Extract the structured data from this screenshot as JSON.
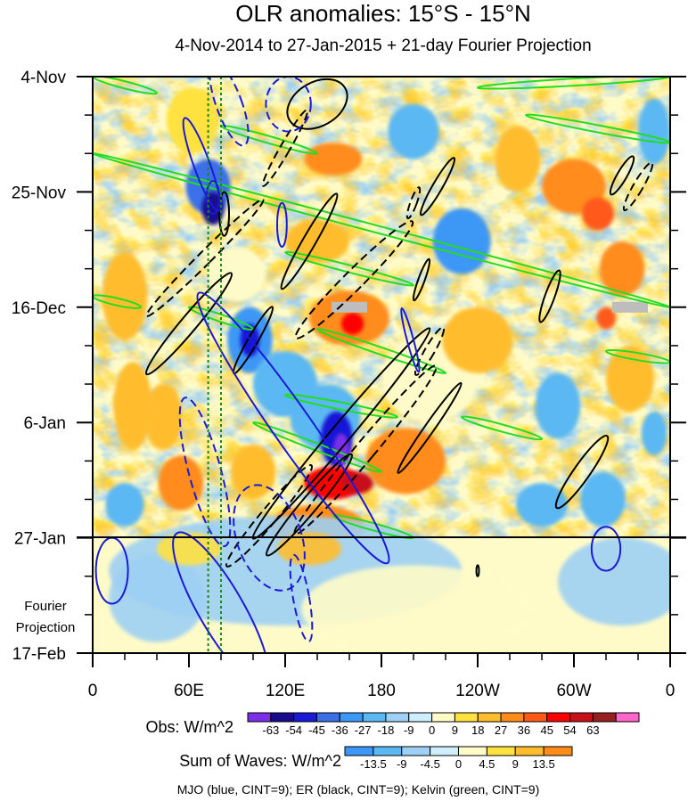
{
  "chart_data": {
    "type": "heatmap",
    "title": "OLR anomalies: 15°S - 15°N",
    "subtitle": "4-Nov-2014 to 27-Jan-2015 + 21-day Fourier Projection",
    "x_ticks": [
      "0",
      "60E",
      "120E",
      "180",
      "120W",
      "60W",
      "0"
    ],
    "x_range_deg": [
      0,
      360
    ],
    "y_ticks": [
      "4-Nov",
      "25-Nov",
      "16-Dec",
      "6-Jan",
      "27-Jan",
      "17-Feb"
    ],
    "y_range_days": [
      0,
      105
    ],
    "projection_start_day": 84,
    "projection_label_line1": "Fourier",
    "projection_label_line2": "Projection",
    "obs_colorbar": {
      "label": "Obs: W/m^2",
      "levels": [
        "-63",
        "-54",
        "-45",
        "-36",
        "-27",
        "-18",
        "-9",
        "0",
        "9",
        "18",
        "27",
        "36",
        "45",
        "54",
        "63"
      ],
      "colors": [
        "#7d2ee8",
        "#1a0a8c",
        "#1919d6",
        "#3b6fe8",
        "#3d97f5",
        "#5cb8f2",
        "#9ed0f4",
        "#cdeefa",
        "#fffbc8",
        "#ffe240",
        "#ffbd2e",
        "#ff8c1a",
        "#ff5a1a",
        "#ff0000",
        "#c8101a",
        "#962020",
        "#ff66cc"
      ]
    },
    "waves_colorbar": {
      "label": "Sum of Waves: W/m^2",
      "levels": [
        "-13.5",
        "-9",
        "-4.5",
        "0",
        "4.5",
        "9",
        "13.5"
      ],
      "colors": [
        "#3d97f5",
        "#5cb8f2",
        "#9ed0f4",
        "#cdeefa",
        "#fffbc8",
        "#ffe240",
        "#ffbd2e",
        "#ff8c1a"
      ]
    },
    "footnote": "MJO (blue, CINT=9); ER (black, CINT=9); Kelvin (green, CINT=9)",
    "green_reference_lines_deg": [
      72,
      80
    ],
    "anomaly_blobs": [
      {
        "lon": 62,
        "day": 8,
        "rx": 16,
        "ry": 6,
        "level": 9
      },
      {
        "lon": 72,
        "day": 20,
        "rx": 14,
        "ry": 5,
        "level": 3
      },
      {
        "lon": 75,
        "day": 24,
        "rx": 7,
        "ry": 3,
        "level": 1
      },
      {
        "lon": 90,
        "day": 36,
        "rx": 18,
        "ry": 5,
        "level": 8
      },
      {
        "lon": 98,
        "day": 48,
        "rx": 14,
        "ry": 6,
        "level": 4
      },
      {
        "lon": 98,
        "day": 48,
        "rx": 6,
        "ry": 3,
        "level": 2
      },
      {
        "lon": 120,
        "day": 56,
        "rx": 20,
        "ry": 6,
        "level": 5
      },
      {
        "lon": 145,
        "day": 62,
        "rx": 22,
        "ry": 6,
        "level": 5
      },
      {
        "lon": 152,
        "day": 66,
        "rx": 10,
        "ry": 5,
        "level": 2
      },
      {
        "lon": 155,
        "day": 68,
        "rx": 5,
        "ry": 3,
        "level": 0
      },
      {
        "lon": 210,
        "day": 55,
        "rx": 30,
        "ry": 8,
        "level": 8
      },
      {
        "lon": 318,
        "day": 77,
        "rx": 14,
        "ry": 5,
        "level": 5
      },
      {
        "lon": 44,
        "day": 62,
        "rx": 12,
        "ry": 6,
        "level": 10
      },
      {
        "lon": 55,
        "day": 74,
        "rx": 14,
        "ry": 5,
        "level": 11
      },
      {
        "lon": 150,
        "day": 74,
        "rx": 18,
        "ry": 3,
        "level": 13
      },
      {
        "lon": 165,
        "day": 74,
        "rx": 10,
        "ry": 2,
        "level": 14
      },
      {
        "lon": 140,
        "day": 82,
        "rx": 30,
        "ry": 4,
        "level": 11
      },
      {
        "lon": 160,
        "day": 44,
        "rx": 25,
        "ry": 5,
        "level": 11
      },
      {
        "lon": 162,
        "day": 45,
        "rx": 7,
        "ry": 2,
        "level": 13
      },
      {
        "lon": 140,
        "day": 30,
        "rx": 20,
        "ry": 4,
        "level": 10
      },
      {
        "lon": 150,
        "day": 15,
        "rx": 18,
        "ry": 3,
        "level": 11
      },
      {
        "lon": 195,
        "day": 70,
        "rx": 25,
        "ry": 6,
        "level": 11
      },
      {
        "lon": 240,
        "day": 48,
        "rx": 22,
        "ry": 6,
        "level": 10
      },
      {
        "lon": 300,
        "day": 20,
        "rx": 20,
        "ry": 5,
        "level": 11
      },
      {
        "lon": 315,
        "day": 25,
        "rx": 10,
        "ry": 3,
        "level": 12
      },
      {
        "lon": 335,
        "day": 55,
        "rx": 15,
        "ry": 6,
        "level": 10
      },
      {
        "lon": 330,
        "day": 35,
        "rx": 14,
        "ry": 5,
        "level": 11
      },
      {
        "lon": 20,
        "day": 40,
        "rx": 14,
        "ry": 8,
        "level": 10
      },
      {
        "lon": 25,
        "day": 60,
        "rx": 12,
        "ry": 8,
        "level": 10
      },
      {
        "lon": 265,
        "day": 15,
        "rx": 14,
        "ry": 6,
        "level": 10
      },
      {
        "lon": 100,
        "day": 72,
        "rx": 14,
        "ry": 5,
        "level": 10
      },
      {
        "lon": 230,
        "day": 30,
        "rx": 18,
        "ry": 6,
        "level": 4
      },
      {
        "lon": 290,
        "day": 60,
        "rx": 14,
        "ry": 6,
        "level": 5
      },
      {
        "lon": 200,
        "day": 10,
        "rx": 16,
        "ry": 5,
        "level": 5
      },
      {
        "lon": 350,
        "day": 10,
        "rx": 10,
        "ry": 6,
        "level": 5
      },
      {
        "lon": 20,
        "day": 78,
        "rx": 12,
        "ry": 4,
        "level": 5
      },
      {
        "lon": 280,
        "day": 78,
        "rx": 16,
        "ry": 4,
        "level": 5
      },
      {
        "lon": 320,
        "day": 44,
        "rx": 6,
        "ry": 2,
        "level": 12
      },
      {
        "lon": 350,
        "day": 65,
        "rx": 8,
        "ry": 4,
        "level": 5
      }
    ],
    "projection_bands": [
      {
        "lon": 120,
        "day": 90,
        "rx": 110,
        "ry": 10,
        "level": 2
      },
      {
        "lon": 330,
        "day": 92,
        "rx": 40,
        "ry": 8,
        "level": 2
      },
      {
        "lon": 40,
        "day": 95,
        "rx": 30,
        "ry": 8,
        "level": 2
      },
      {
        "lon": 200,
        "day": 97,
        "rx": 70,
        "ry": 8,
        "level": 4
      },
      {
        "lon": 60,
        "day": 86,
        "rx": 20,
        "ry": 3,
        "level": 5
      },
      {
        "lon": 135,
        "day": 86,
        "rx": 20,
        "ry": 3,
        "level": 6
      }
    ],
    "mjo_contours": [
      {
        "lon": 68,
        "day": 16,
        "rx": 5,
        "ry": 9,
        "rot": -20,
        "dash": false
      },
      {
        "lon": 75,
        "day": 22,
        "rx": 4,
        "ry": 3,
        "rot": 0,
        "dash": false
      },
      {
        "lon": 118,
        "day": 27,
        "rx": 3,
        "ry": 4,
        "rot": 0,
        "dash": false
      },
      {
        "lon": 125,
        "day": 64,
        "rx": 12,
        "ry": 30,
        "rot": -35,
        "dash": false
      },
      {
        "lon": 198,
        "day": 48,
        "rx": 2,
        "ry": 6,
        "rot": -15,
        "dash": false
      },
      {
        "lon": 80,
        "day": 97,
        "rx": 14,
        "ry": 16,
        "rot": -30,
        "dash": false
      },
      {
        "lon": 12,
        "day": 90,
        "rx": 10,
        "ry": 6,
        "rot": 0,
        "dash": false
      },
      {
        "lon": 320,
        "day": 86,
        "rx": 9,
        "ry": 4,
        "rot": 0,
        "dash": false
      },
      {
        "lon": 70,
        "day": 72,
        "rx": 10,
        "ry": 14,
        "rot": -15,
        "dash": true
      },
      {
        "lon": 110,
        "day": 84,
        "rx": 20,
        "ry": 10,
        "rot": -20,
        "dash": true
      },
      {
        "lon": 130,
        "day": 95,
        "rx": 5,
        "ry": 8,
        "rot": -10,
        "dash": true
      },
      {
        "lon": 85,
        "day": 5,
        "rx": 8,
        "ry": 8,
        "rot": -20,
        "dash": true
      },
      {
        "lon": 122,
        "day": 5,
        "rx": 14,
        "ry": 5,
        "rot": 0,
        "dash": true
      }
    ],
    "er_contours": [
      {
        "lon": 82,
        "day": 25,
        "rx": 3,
        "ry": 4,
        "rot": 0,
        "dash": false
      },
      {
        "lon": 140,
        "day": 5,
        "rx": 20,
        "ry": 4,
        "rot": -30,
        "dash": false
      },
      {
        "lon": 135,
        "day": 30,
        "rx": 4,
        "ry": 10,
        "rot": 30,
        "dash": false
      },
      {
        "lon": 100,
        "day": 48,
        "rx": 3,
        "ry": 7,
        "rot": 30,
        "dash": false
      },
      {
        "lon": 155,
        "day": 65,
        "rx": 6,
        "ry": 25,
        "rot": 40,
        "dash": false
      },
      {
        "lon": 135,
        "day": 78,
        "rx": 5,
        "ry": 12,
        "rot": 40,
        "dash": false
      },
      {
        "lon": 210,
        "day": 64,
        "rx": 3,
        "ry": 10,
        "rot": 35,
        "dash": false
      },
      {
        "lon": 305,
        "day": 72,
        "rx": 5,
        "ry": 8,
        "rot": 35,
        "dash": false
      },
      {
        "lon": 285,
        "day": 40,
        "rx": 3,
        "ry": 5,
        "rot": 20,
        "dash": false
      },
      {
        "lon": 330,
        "day": 18,
        "rx": 3,
        "ry": 4,
        "rot": 30,
        "dash": false
      },
      {
        "lon": 205,
        "day": 37,
        "rx": 2,
        "ry": 4,
        "rot": 20,
        "dash": false
      },
      {
        "lon": 215,
        "day": 20,
        "rx": 3,
        "ry": 6,
        "rot": 30,
        "dash": false
      },
      {
        "lon": 60,
        "day": 45,
        "rx": 5,
        "ry": 12,
        "rot": 40,
        "dash": false
      },
      {
        "lon": 240,
        "day": 90,
        "rx": 0.8,
        "ry": 1,
        "rot": 0,
        "dash": false
      },
      {
        "lon": 70,
        "day": 33,
        "rx": 4,
        "ry": 15,
        "rot": 45,
        "dash": true
      },
      {
        "lon": 120,
        "day": 13,
        "rx": 3,
        "ry": 8,
        "rot": 30,
        "dash": true
      },
      {
        "lon": 163,
        "day": 37,
        "rx": 6,
        "ry": 15,
        "rot": 45,
        "dash": true
      },
      {
        "lon": 170,
        "day": 68,
        "rx": 6,
        "ry": 20,
        "rot": 40,
        "dash": true
      },
      {
        "lon": 110,
        "day": 80,
        "rx": 5,
        "ry": 12,
        "rot": 40,
        "dash": true
      },
      {
        "lon": 340,
        "day": 20,
        "rx": 3,
        "ry": 5,
        "rot": 30,
        "dash": true
      },
      {
        "lon": 200,
        "day": 23,
        "rx": 2,
        "ry": 3,
        "rot": 20,
        "dash": true
      },
      {
        "lon": 210,
        "day": 50,
        "rx": 3,
        "ry": 5,
        "rot": 30,
        "dash": true
      }
    ],
    "kelvin_bands": [
      {
        "lon1": 0,
        "day1": 0,
        "lon2": 40,
        "day2": 3
      },
      {
        "lon1": 0,
        "day1": 14,
        "lon2": 360,
        "day2": 42
      },
      {
        "lon1": 80,
        "day1": 9,
        "lon2": 140,
        "day2": 14
      },
      {
        "lon1": 270,
        "day1": 7,
        "lon2": 360,
        "day2": 12
      },
      {
        "lon1": 240,
        "day1": 2,
        "lon2": 360,
        "day2": 0
      },
      {
        "lon1": 120,
        "day1": 32,
        "lon2": 200,
        "day2": 38
      },
      {
        "lon1": 0,
        "day1": 40,
        "lon2": 30,
        "day2": 42
      },
      {
        "lon1": 60,
        "day1": 42,
        "lon2": 100,
        "day2": 46
      },
      {
        "lon1": 140,
        "day1": 46,
        "lon2": 220,
        "day2": 54
      },
      {
        "lon1": 100,
        "day1": 63,
        "lon2": 180,
        "day2": 72
      },
      {
        "lon1": 120,
        "day1": 58,
        "lon2": 190,
        "day2": 62
      },
      {
        "lon1": 150,
        "day1": 80,
        "lon2": 200,
        "day2": 84
      },
      {
        "lon1": 230,
        "day1": 62,
        "lon2": 280,
        "day2": 66
      },
      {
        "lon1": 320,
        "day1": 50,
        "lon2": 360,
        "day2": 52
      }
    ],
    "missing_data": [
      {
        "lon": 335,
        "day": 42
      },
      {
        "lon": 160,
        "day": 42
      }
    ]
  }
}
